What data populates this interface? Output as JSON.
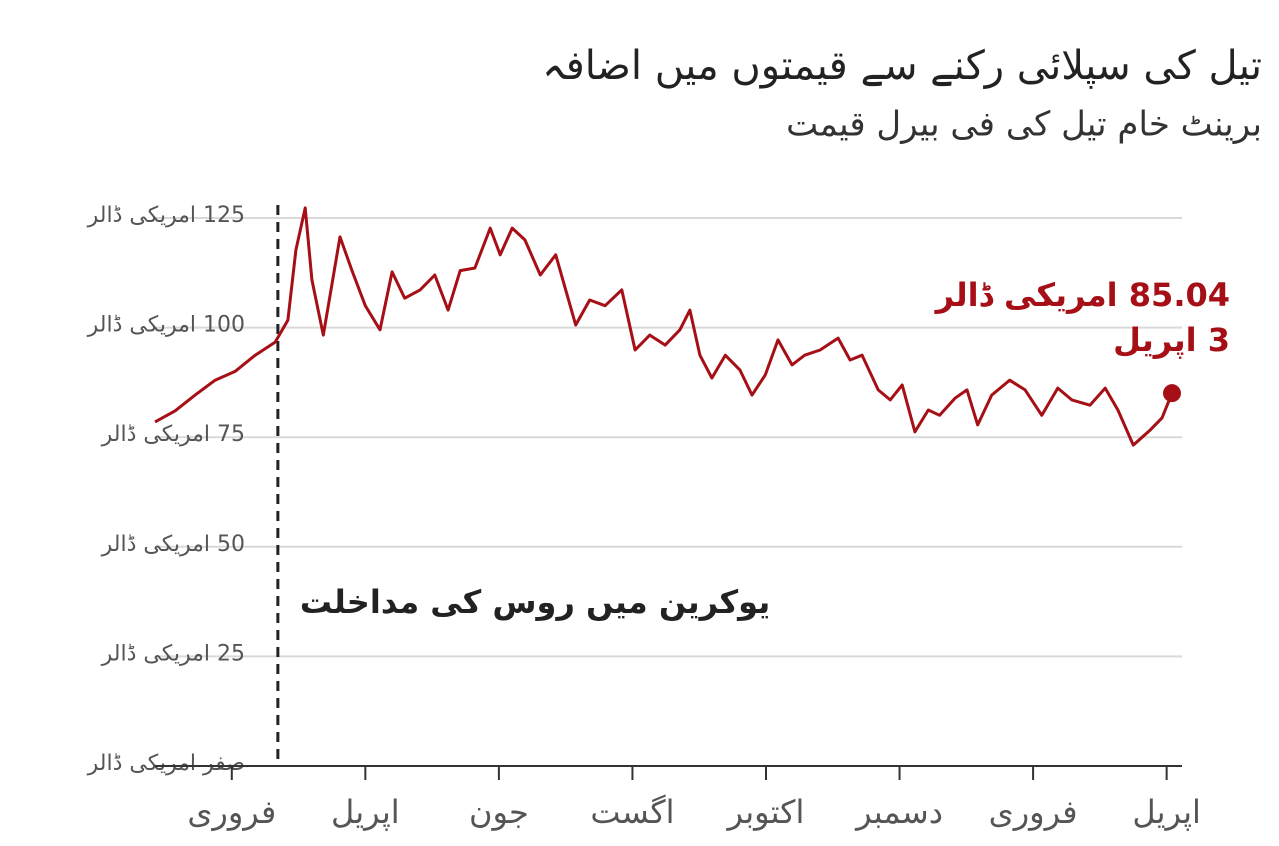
{
  "chart_data": {
    "type": "line",
    "title": "تیل کی سپلائی رکنے سے قیمتوں میں اضافہ",
    "subtitle": "برینٹ خام تیل کی فی بیرل قیمت",
    "x": [
      0.85,
      1.15,
      1.45,
      1.75,
      2.05,
      2.35,
      2.65,
      2.84,
      2.96,
      3.1,
      3.2,
      3.37,
      3.62,
      3.8,
      4.0,
      4.22,
      4.4,
      4.59,
      4.82,
      5.04,
      5.24,
      5.42,
      5.64,
      5.87,
      6.02,
      6.2,
      6.39,
      6.62,
      6.85,
      7.15,
      7.36,
      7.59,
      7.84,
      8.04,
      8.26,
      8.49,
      8.71,
      8.86,
      9.01,
      9.19,
      9.39,
      9.61,
      9.79,
      9.99,
      10.18,
      10.39,
      10.58,
      10.81,
      11.08,
      11.26,
      11.44,
      11.68,
      11.86,
      12.04,
      12.23,
      12.43,
      12.6,
      12.83,
      13.01,
      13.17,
      13.38,
      13.65,
      13.88,
      14.13,
      14.37,
      14.58,
      14.85,
      15.08,
      15.27,
      15.5,
      15.75,
      15.93,
      16.08
    ],
    "series": [
      {
        "color": "#a50f15",
        "values": [
          78.5,
          81,
          84.6,
          88,
          90,
          93.7,
          96.7,
          101.7,
          117.7,
          127.3,
          110.9,
          98.3,
          120.7,
          113,
          105,
          99.5,
          112.7,
          106.7,
          108.6,
          112,
          104,
          113,
          113.6,
          122.7,
          116.6,
          122.7,
          120,
          112,
          116.6,
          100.6,
          106.3,
          105,
          108.6,
          94.9,
          98.3,
          96,
          99.5,
          104,
          93.7,
          88.5,
          93.7,
          90.3,
          84.6,
          89.2,
          97.2,
          91.5,
          93.7,
          94.9,
          97.6,
          92.6,
          93.7,
          85.8,
          83.5,
          86.9,
          76.2,
          81.2,
          80,
          83.9,
          85.8,
          77.8,
          84.6,
          88,
          85.8,
          80,
          86.2,
          83.5,
          82.3,
          86.2,
          81.2,
          73.2,
          76.6,
          79.4,
          85.04
        ],
        "value_labels": [
          null,
          null,
          null,
          null,
          null,
          null,
          null,
          null,
          null,
          null,
          null,
          null,
          null,
          null,
          null,
          null,
          null,
          null,
          null,
          null,
          null,
          null,
          null,
          null,
          null,
          null,
          null,
          null,
          null,
          null,
          null,
          null,
          null,
          null,
          null,
          null,
          null,
          null,
          null,
          null,
          null,
          null,
          null,
          null,
          null,
          null,
          null,
          null,
          null,
          null,
          null,
          null,
          null,
          null,
          null,
          null,
          null,
          null,
          null,
          null,
          null,
          null,
          null,
          null,
          null,
          null,
          null,
          null,
          null,
          null,
          null,
          null,
          "85.04 امریکی ڈالر"
        ]
      }
    ],
    "end_date_label": "3 اپریل",
    "event": {
      "x": 2.69,
      "label": "یوکرین میں روس کی مداخلت"
    },
    "xlim": [
      0.85,
      16.2
    ],
    "xticks": [
      {
        "value": 2,
        "label": "فروری"
      },
      {
        "value": 4,
        "label": "اپریل"
      },
      {
        "value": 6,
        "label": "جون"
      },
      {
        "value": 8,
        "label": "اگست"
      },
      {
        "value": 10,
        "label": "اکتوبر"
      },
      {
        "value": 12,
        "label": "دسمبر"
      },
      {
        "value": 14,
        "label": "فروری"
      },
      {
        "value": 16,
        "label": "اپریل"
      }
    ],
    "ylim": [
      0,
      125
    ],
    "yticks": [
      {
        "value": 0,
        "label": "صفر امریکی ڈالر"
      },
      {
        "value": 25,
        "label": "25 امریکی ڈالر"
      },
      {
        "value": 50,
        "label": "50 امریکی ڈالر"
      },
      {
        "value": 75,
        "label": "75 امریکی ڈالر"
      },
      {
        "value": 100,
        "label": "100 امریکی ڈالر"
      },
      {
        "value": 125,
        "label": "125 امریکی ڈالر"
      }
    ],
    "grid": true
  }
}
